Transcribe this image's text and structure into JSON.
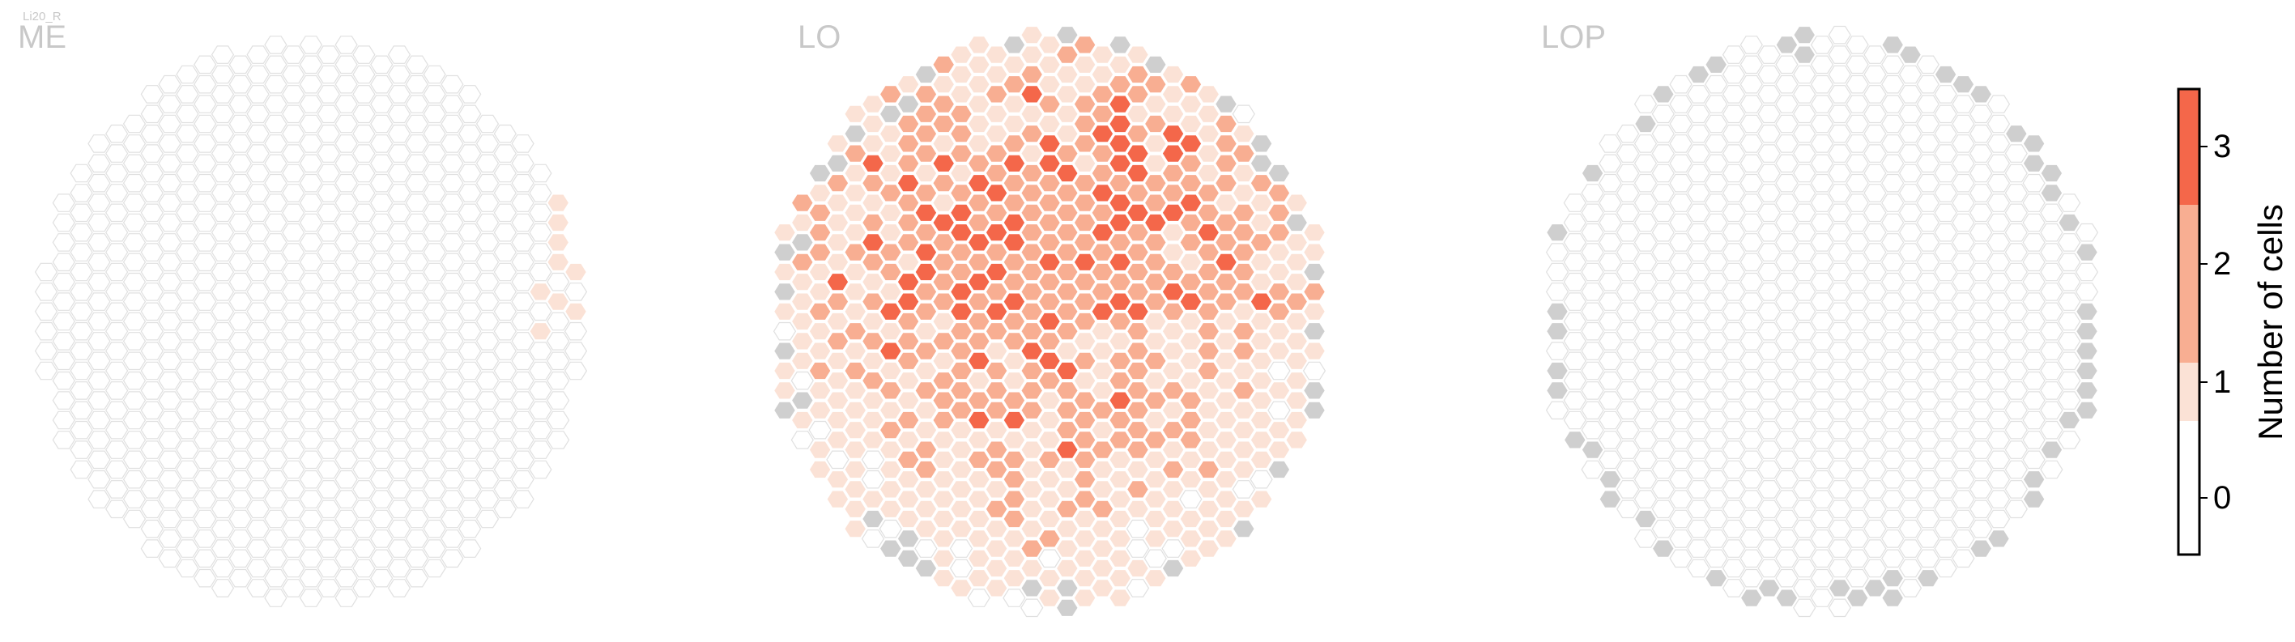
{
  "chart_data": [
    {
      "type": "heatmap",
      "subtitle": "Li20_R",
      "title": "ME",
      "cell_counts": {
        "1": 9,
        "2": 0,
        "3": 0
      },
      "grey_cells": 0
    },
    {
      "type": "heatmap",
      "title": "LO",
      "cell_counts": {
        "1": 350,
        "2": 270,
        "3": 70
      },
      "grey_cells": 40
    },
    {
      "type": "heatmap",
      "title": "LOP",
      "cell_counts": {
        "1": 0,
        "2": 0,
        "3": 0
      },
      "grey_cells": 68
    }
  ],
  "colorbar": {
    "label": "Number of cells",
    "ticks": [
      "0",
      "1",
      "2",
      "3"
    ],
    "range": [
      -0.5,
      3.5
    ],
    "colors": [
      "#ffffff",
      "#fbe2d6",
      "#f8ae92",
      "#f4674a"
    ]
  },
  "colors": {
    "empty_outline": "#e0e0e0",
    "missing_cell": "#cfcfcf",
    "title_color": "#c8c8c8"
  }
}
